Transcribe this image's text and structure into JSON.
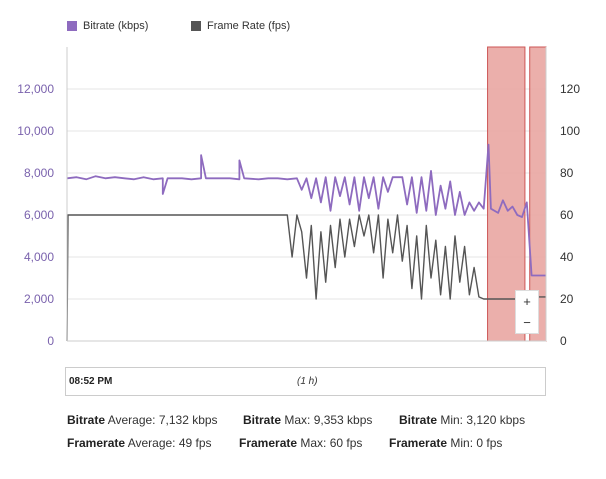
{
  "chart_data": {
    "type": "line",
    "legend": [
      {
        "name": "Bitrate (kbps)",
        "color": "#8e6bbf"
      },
      {
        "name": "Frame Rate (fps)",
        "color": "#555555"
      }
    ],
    "left_axis": {
      "ticks": [
        "0",
        "2,000",
        "4,000",
        "6,000",
        "8,000",
        "10,000",
        "12,000"
      ],
      "range": [
        0,
        14000
      ]
    },
    "right_axis": {
      "ticks": [
        "0",
        "20",
        "40",
        "60",
        "80",
        "100",
        "120"
      ],
      "range": [
        0,
        140
      ]
    },
    "x_range": [
      0,
      1
    ],
    "series": [
      {
        "name": "Bitrate (kbps)",
        "axis": "left",
        "color": "#8e6bbf",
        "points": [
          [
            0.0,
            7750
          ],
          [
            0.02,
            7800
          ],
          [
            0.04,
            7700
          ],
          [
            0.06,
            7850
          ],
          [
            0.08,
            7750
          ],
          [
            0.1,
            7800
          ],
          [
            0.12,
            7750
          ],
          [
            0.14,
            7700
          ],
          [
            0.16,
            7800
          ],
          [
            0.18,
            7700
          ],
          [
            0.2,
            7750
          ],
          [
            0.2,
            7000
          ],
          [
            0.21,
            7750
          ],
          [
            0.24,
            7750
          ],
          [
            0.26,
            7700
          ],
          [
            0.28,
            7750
          ],
          [
            0.28,
            8850
          ],
          [
            0.29,
            7750
          ],
          [
            0.32,
            7750
          ],
          [
            0.34,
            7750
          ],
          [
            0.36,
            7700
          ],
          [
            0.36,
            8600
          ],
          [
            0.37,
            7750
          ],
          [
            0.4,
            7700
          ],
          [
            0.42,
            7750
          ],
          [
            0.44,
            7750
          ],
          [
            0.46,
            7700
          ],
          [
            0.48,
            7750
          ],
          [
            0.49,
            7200
          ],
          [
            0.5,
            7750
          ],
          [
            0.51,
            6800
          ],
          [
            0.52,
            7750
          ],
          [
            0.53,
            6600
          ],
          [
            0.54,
            7800
          ],
          [
            0.55,
            6200
          ],
          [
            0.56,
            7800
          ],
          [
            0.57,
            6900
          ],
          [
            0.58,
            7800
          ],
          [
            0.59,
            6500
          ],
          [
            0.6,
            7800
          ],
          [
            0.61,
            6200
          ],
          [
            0.62,
            7800
          ],
          [
            0.63,
            6800
          ],
          [
            0.64,
            7800
          ],
          [
            0.65,
            6300
          ],
          [
            0.66,
            7800
          ],
          [
            0.67,
            7100
          ],
          [
            0.68,
            7800
          ],
          [
            0.7,
            7800
          ],
          [
            0.71,
            6500
          ],
          [
            0.72,
            7800
          ],
          [
            0.73,
            6100
          ],
          [
            0.74,
            7800
          ],
          [
            0.75,
            6200
          ],
          [
            0.76,
            8100
          ],
          [
            0.77,
            6000
          ],
          [
            0.78,
            7400
          ],
          [
            0.79,
            6300
          ],
          [
            0.8,
            7600
          ],
          [
            0.81,
            6000
          ],
          [
            0.82,
            7100
          ],
          [
            0.83,
            6000
          ],
          [
            0.84,
            6600
          ],
          [
            0.85,
            6200
          ],
          [
            0.86,
            6600
          ],
          [
            0.87,
            6300
          ],
          [
            0.88,
            9353
          ],
          [
            0.885,
            6300
          ],
          [
            0.9,
            6100
          ],
          [
            0.91,
            6700
          ],
          [
            0.92,
            6200
          ],
          [
            0.93,
            6400
          ],
          [
            0.94,
            6000
          ],
          [
            0.95,
            5900
          ],
          [
            0.96,
            6600
          ],
          [
            0.97,
            3120
          ],
          [
            1.0,
            3120
          ]
        ]
      },
      {
        "name": "Frame Rate (fps)",
        "axis": "right",
        "color": "#555555",
        "points": [
          [
            0.0,
            0
          ],
          [
            0.002,
            60
          ],
          [
            0.05,
            60
          ],
          [
            0.1,
            60
          ],
          [
            0.2,
            60
          ],
          [
            0.3,
            60
          ],
          [
            0.4,
            60
          ],
          [
            0.46,
            60
          ],
          [
            0.47,
            40
          ],
          [
            0.48,
            60
          ],
          [
            0.49,
            52
          ],
          [
            0.5,
            30
          ],
          [
            0.51,
            55
          ],
          [
            0.52,
            20
          ],
          [
            0.53,
            52
          ],
          [
            0.54,
            28
          ],
          [
            0.55,
            55
          ],
          [
            0.56,
            35
          ],
          [
            0.57,
            58
          ],
          [
            0.58,
            40
          ],
          [
            0.59,
            58
          ],
          [
            0.6,
            45
          ],
          [
            0.61,
            60
          ],
          [
            0.62,
            50
          ],
          [
            0.63,
            60
          ],
          [
            0.64,
            42
          ],
          [
            0.65,
            60
          ],
          [
            0.66,
            30
          ],
          [
            0.67,
            58
          ],
          [
            0.68,
            42
          ],
          [
            0.69,
            60
          ],
          [
            0.7,
            38
          ],
          [
            0.71,
            55
          ],
          [
            0.72,
            25
          ],
          [
            0.73,
            50
          ],
          [
            0.74,
            20
          ],
          [
            0.75,
            55
          ],
          [
            0.76,
            30
          ],
          [
            0.77,
            48
          ],
          [
            0.78,
            22
          ],
          [
            0.79,
            45
          ],
          [
            0.8,
            20
          ],
          [
            0.81,
            50
          ],
          [
            0.82,
            28
          ],
          [
            0.83,
            45
          ],
          [
            0.84,
            22
          ],
          [
            0.85,
            35
          ],
          [
            0.86,
            21
          ],
          [
            0.87,
            20
          ],
          [
            0.9,
            20
          ],
          [
            0.95,
            20
          ],
          [
            0.96,
            21
          ],
          [
            0.97,
            21
          ],
          [
            1.0,
            21
          ]
        ]
      }
    ],
    "highlight_bands": [
      [
        0.878,
        0.956
      ],
      [
        0.966,
        1.0
      ]
    ]
  },
  "timeline": {
    "start": "08:52 PM",
    "span": "(1 h)"
  },
  "zoom": {
    "plus": "+",
    "minus": "−"
  },
  "stats": {
    "bitrate_label": "Bitrate",
    "framerate_label": "Framerate",
    "bitrate_avg": " Average: 7,132 kbps",
    "bitrate_max": " Max: 9,353 kbps",
    "bitrate_min": " Min: 3,120 kbps",
    "framerate_avg": " Average: 49 fps",
    "framerate_max": " Max: 60 fps",
    "framerate_min": " Min: 0 fps"
  },
  "colors": {
    "band": "#e8a19c",
    "band_border": "#cc5555",
    "axis_text": "#7a62ad",
    "right_axis_text": "#333333"
  }
}
